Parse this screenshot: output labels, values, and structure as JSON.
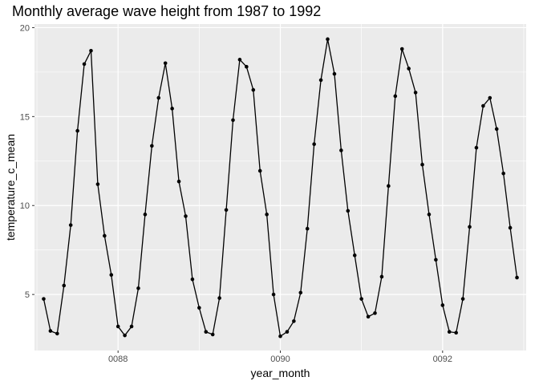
{
  "chart_data": {
    "type": "line",
    "title": "Monthly average wave height from 1987 to 1992",
    "xlabel": "year_month",
    "ylabel": "temperature_c_mean",
    "xlim": [
      86.97,
      93.03
    ],
    "ylim": [
      1.85,
      20.2
    ],
    "x_ticks": [
      {
        "value": 88,
        "label": "0088"
      },
      {
        "value": 90,
        "label": "0090"
      },
      {
        "value": 92,
        "label": "0092"
      }
    ],
    "x_minor_ticks": [
      87,
      89,
      91,
      93
    ],
    "y_ticks": [
      {
        "value": 5,
        "label": "5"
      },
      {
        "value": 10,
        "label": "10"
      },
      {
        "value": 15,
        "label": "15"
      },
      {
        "value": 20,
        "label": "20"
      }
    ],
    "y_minor_ticks": [
      7.5,
      12.5,
      17.5
    ],
    "grid": true,
    "colors": {
      "panel": "#ebebeb",
      "grid": "#ffffff",
      "line": "#000000",
      "tick": "#333333"
    },
    "x": [
      87.0833,
      87.1667,
      87.25,
      87.3333,
      87.4167,
      87.5,
      87.5833,
      87.6667,
      87.75,
      87.8333,
      87.9167,
      88.0,
      88.0833,
      88.1667,
      88.25,
      88.3333,
      88.4167,
      88.5,
      88.5833,
      88.6667,
      88.75,
      88.8333,
      88.9167,
      89.0,
      89.0833,
      89.1667,
      89.25,
      89.3333,
      89.4167,
      89.5,
      89.5833,
      89.6667,
      89.75,
      89.8333,
      89.9167,
      90.0,
      90.0833,
      90.1667,
      90.25,
      90.3333,
      90.4167,
      90.5,
      90.5833,
      90.6667,
      90.75,
      90.8333,
      90.9167,
      91.0,
      91.0833,
      91.1667,
      91.25,
      91.3333,
      91.4167,
      91.5,
      91.5833,
      91.6667,
      91.75,
      91.8333,
      91.9167,
      92.0,
      92.0833,
      92.1667,
      92.25,
      92.3333,
      92.4167,
      92.5,
      92.5833,
      92.6667,
      92.75,
      92.8333,
      92.9167
    ],
    "values": [
      4.75,
      2.95,
      2.8,
      5.5,
      8.9,
      14.2,
      17.95,
      18.7,
      11.2,
      8.3,
      6.1,
      3.2,
      2.7,
      3.2,
      5.35,
      9.5,
      13.35,
      16.05,
      18.0,
      15.45,
      11.35,
      9.4,
      5.85,
      4.25,
      2.9,
      2.75,
      4.8,
      9.75,
      14.8,
      18.2,
      17.8,
      16.5,
      11.95,
      9.5,
      5.0,
      2.65,
      2.9,
      3.5,
      5.1,
      8.7,
      13.45,
      17.05,
      19.35,
      17.4,
      13.1,
      9.7,
      7.2,
      4.75,
      3.75,
      3.95,
      6.0,
      11.1,
      16.15,
      18.8,
      17.7,
      16.35,
      12.3,
      9.5,
      6.95,
      4.4,
      2.9,
      2.85,
      4.75,
      8.8,
      13.25,
      15.6,
      16.05,
      14.3,
      11.8,
      8.75,
      5.95
    ]
  }
}
